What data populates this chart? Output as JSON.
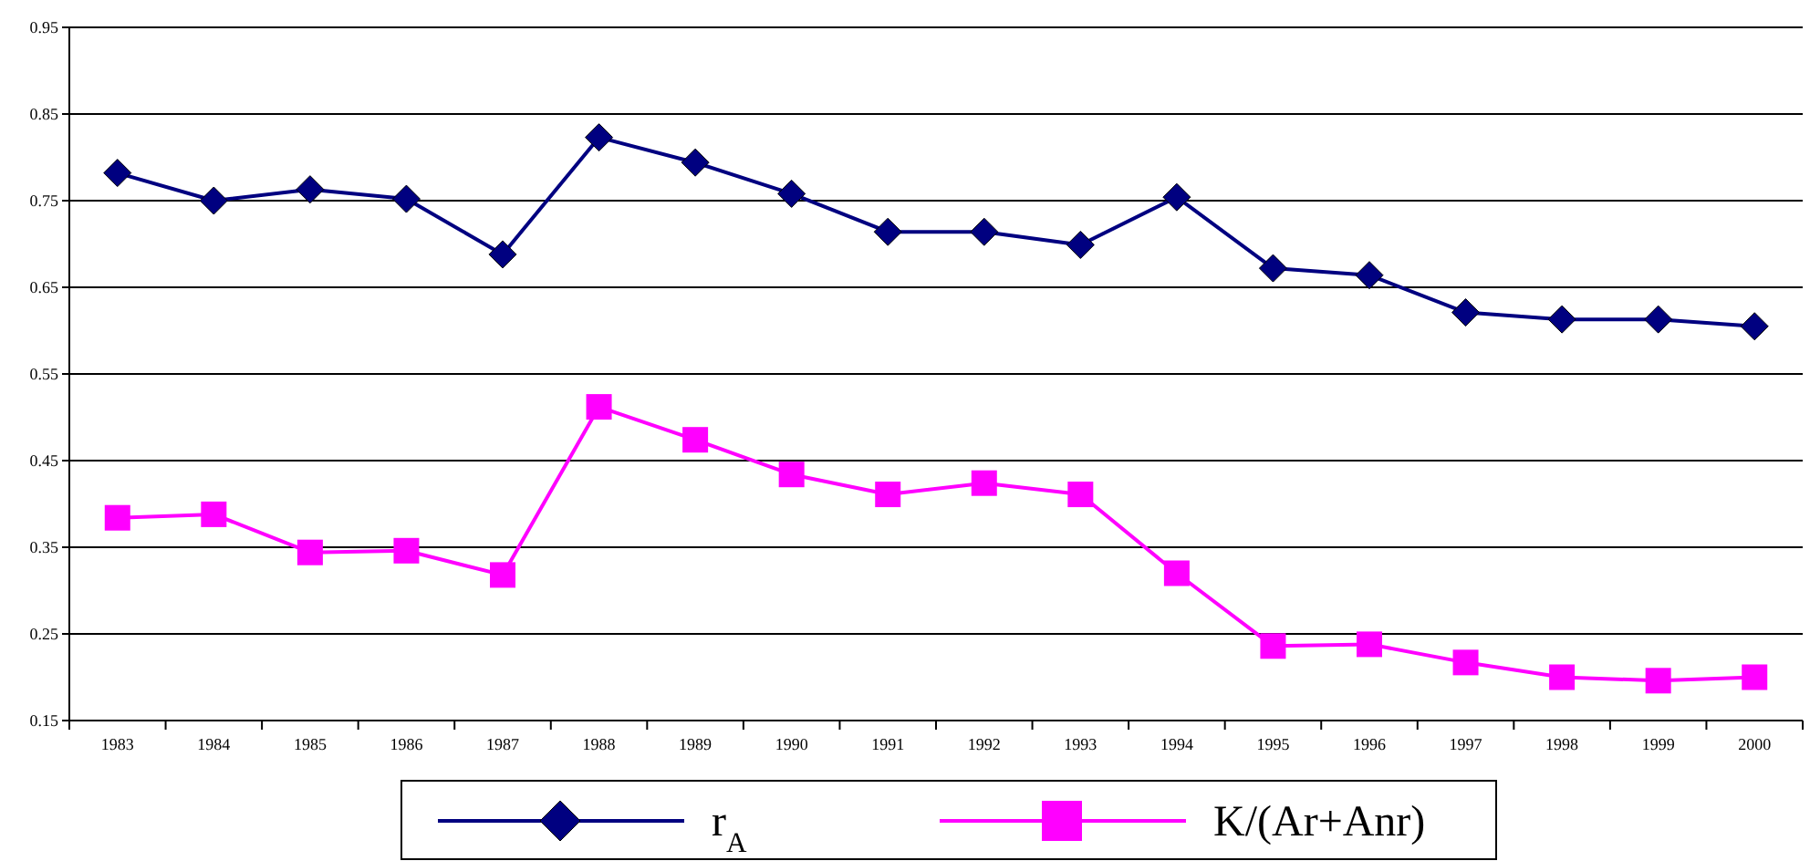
{
  "chart_data": {
    "type": "line",
    "categories": [
      "1983",
      "1984",
      "1985",
      "1986",
      "1987",
      "1988",
      "1989",
      "1990",
      "1991",
      "1992",
      "1993",
      "1994",
      "1995",
      "1996",
      "1997",
      "1998",
      "1999",
      "2000"
    ],
    "series": [
      {
        "name": "r$_{A}$",
        "color": "#000080",
        "marker": "diamond",
        "values": [
          0.782,
          0.75,
          0.763,
          0.752,
          0.688,
          0.823,
          0.794,
          0.758,
          0.714,
          0.714,
          0.699,
          0.754,
          0.672,
          0.664,
          0.621,
          0.613,
          0.613,
          0.605
        ]
      },
      {
        "name": "K/(Ar+Anr)",
        "color": "#ff00ff",
        "marker": "square",
        "values": [
          0.384,
          0.388,
          0.344,
          0.346,
          0.318,
          0.512,
          0.474,
          0.434,
          0.411,
          0.424,
          0.411,
          0.32,
          0.236,
          0.238,
          0.217,
          0.2,
          0.196,
          0.2
        ]
      }
    ],
    "ylim": [
      0.15,
      0.95
    ],
    "yticks": [
      0.15,
      0.25,
      0.35,
      0.45,
      0.55,
      0.65,
      0.75,
      0.85,
      0.95
    ],
    "grid": "y",
    "legend": "bottom",
    "line_style": "solid"
  }
}
